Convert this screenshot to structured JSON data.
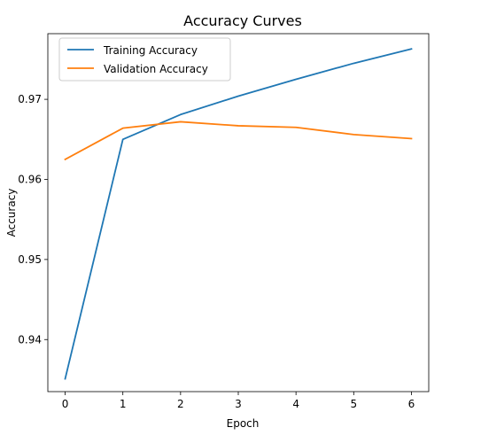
{
  "chart_data": {
    "type": "line",
    "title": "Accuracy Curves",
    "xlabel": "Epoch",
    "ylabel": "Accuracy",
    "x": [
      0,
      1,
      2,
      3,
      4,
      5,
      6
    ],
    "xlim": [
      -0.3,
      6.3
    ],
    "ylim": [
      0.9335,
      0.9782
    ],
    "xticks": [
      0,
      1,
      2,
      3,
      4,
      5,
      6
    ],
    "yticks": [
      0.94,
      0.95,
      0.96,
      0.97
    ],
    "grid": false,
    "legend_position": "upper-left",
    "series": [
      {
        "name": "Training Accuracy",
        "color": "#1f77b4",
        "values": [
          0.9351,
          0.965,
          0.9681,
          0.9704,
          0.9725,
          0.9745,
          0.9763
        ]
      },
      {
        "name": "Validation Accuracy",
        "color": "#ff7f0e",
        "values": [
          0.9625,
          0.9664,
          0.9672,
          0.9667,
          0.9665,
          0.9656,
          0.9651
        ]
      }
    ]
  }
}
